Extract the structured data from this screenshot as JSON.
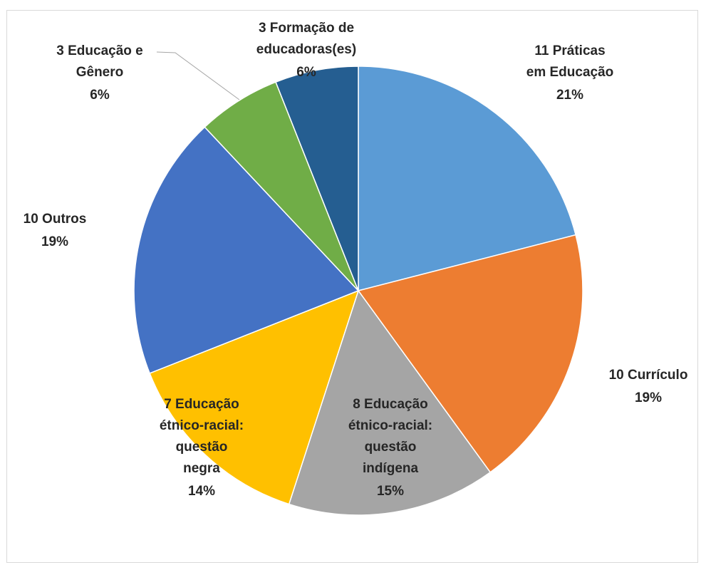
{
  "chart_data": {
    "type": "pie",
    "categories": [
      [
        "11 Práticas",
        "em Educação"
      ],
      [
        "10 Currículo"
      ],
      [
        "8 Educação",
        "étnico-racial:",
        "questão",
        "indígena"
      ],
      [
        "7 Educação",
        "étnico-racial:",
        "questão",
        "negra"
      ],
      [
        "10 Outros"
      ],
      [
        "3 Educação e",
        "Gênero"
      ],
      [
        "3 Formação de",
        "educadoras(es)"
      ]
    ],
    "values": [
      21,
      19,
      15,
      14,
      19,
      6,
      6
    ],
    "value_labels": [
      "21%",
      "19%",
      "15%",
      "14%",
      "19%",
      "6%",
      "6%"
    ],
    "colors": [
      "#5b9bd5",
      "#ed7d31",
      "#a5a5a5",
      "#ffc000",
      "#4472c4",
      "#70ad47",
      "#255e91"
    ]
  }
}
